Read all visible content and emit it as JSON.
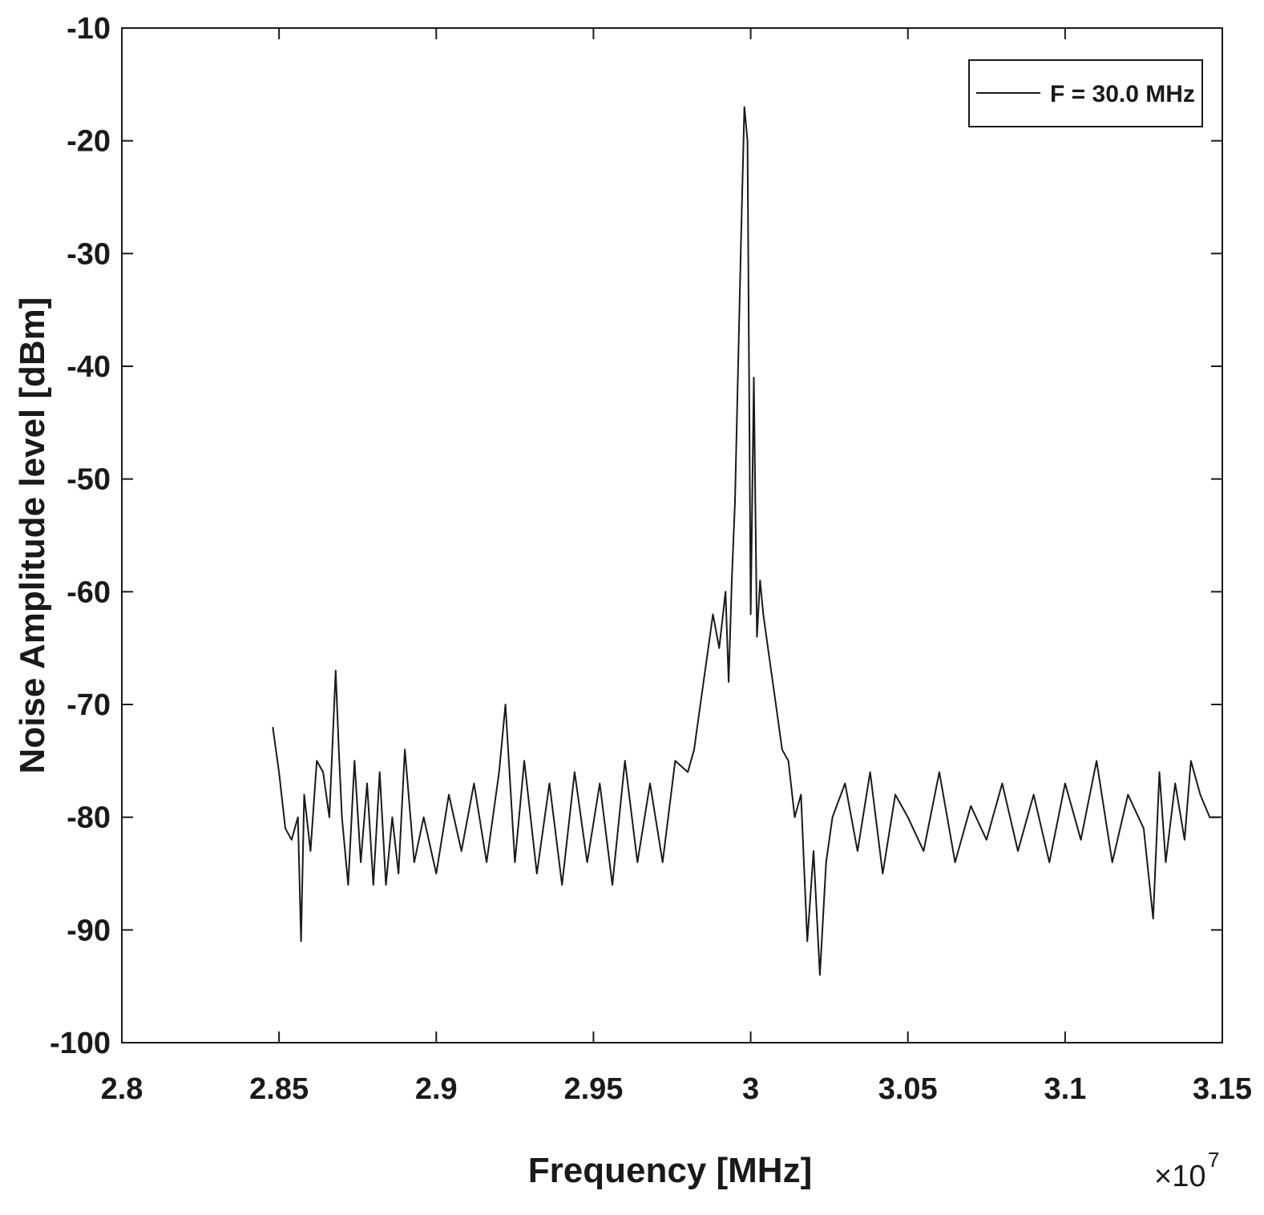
{
  "chart_data": {
    "type": "line",
    "title": "",
    "xlabel": "Frequency [MHz]",
    "ylabel": "Noise Amplitude level [dBm]",
    "x_exponent_label": "×10",
    "x_exponent_power": "7",
    "xlim": [
      2.8,
      3.15
    ],
    "ylim": [
      -100,
      -10
    ],
    "xticks": [
      2.8,
      2.85,
      2.9,
      2.95,
      3.0,
      3.05,
      3.1,
      3.15
    ],
    "xtick_labels": [
      "2.8",
      "2.85",
      "2.9",
      "2.95",
      "3",
      "3.05",
      "3.1",
      "3.15"
    ],
    "yticks": [
      -100,
      -90,
      -80,
      -70,
      -60,
      -50,
      -40,
      -30,
      -20,
      -10
    ],
    "ytick_labels": [
      "-100",
      "-90",
      "-80",
      "-70",
      "-60",
      "-50",
      "-40",
      "-30",
      "-20",
      "-10"
    ],
    "grid": false,
    "legend_position": "top-right",
    "series": [
      {
        "name": "F = 30.0 MHz",
        "color": "#1a1a1a",
        "x": [
          2.848,
          2.85,
          2.852,
          2.854,
          2.856,
          2.857,
          2.858,
          2.86,
          2.862,
          2.864,
          2.866,
          2.868,
          2.869,
          2.87,
          2.872,
          2.874,
          2.876,
          2.878,
          2.88,
          2.882,
          2.884,
          2.886,
          2.888,
          2.89,
          2.893,
          2.896,
          2.9,
          2.904,
          2.908,
          2.912,
          2.916,
          2.92,
          2.922,
          2.925,
          2.928,
          2.932,
          2.936,
          2.94,
          2.944,
          2.948,
          2.952,
          2.956,
          2.96,
          2.964,
          2.968,
          2.972,
          2.976,
          2.98,
          2.982,
          2.984,
          2.986,
          2.988,
          2.99,
          2.992,
          2.993,
          2.994,
          2.995,
          2.996,
          2.997,
          2.998,
          2.999,
          3.0,
          3.001,
          3.002,
          3.003,
          3.004,
          3.006,
          3.008,
          3.01,
          3.012,
          3.014,
          3.016,
          3.018,
          3.02,
          3.022,
          3.024,
          3.026,
          3.03,
          3.034,
          3.038,
          3.042,
          3.046,
          3.05,
          3.055,
          3.06,
          3.065,
          3.07,
          3.075,
          3.08,
          3.085,
          3.09,
          3.095,
          3.1,
          3.105,
          3.11,
          3.115,
          3.12,
          3.125,
          3.128,
          3.13,
          3.132,
          3.135,
          3.138,
          3.14,
          3.143,
          3.146,
          3.149
        ],
        "y": [
          -72,
          -76,
          -81,
          -82,
          -80,
          -91,
          -78,
          -83,
          -75,
          -76,
          -80,
          -67,
          -74,
          -80,
          -86,
          -75,
          -84,
          -77,
          -86,
          -76,
          -86,
          -80,
          -85,
          -74,
          -84,
          -80,
          -85,
          -78,
          -83,
          -77,
          -84,
          -76,
          -70,
          -84,
          -75,
          -85,
          -77,
          -86,
          -76,
          -84,
          -77,
          -86,
          -75,
          -84,
          -77,
          -84,
          -75,
          -76,
          -74,
          -70,
          -66,
          -62,
          -65,
          -60,
          -68,
          -59,
          -52,
          -40,
          -28,
          -17,
          -20,
          -62,
          -41,
          -64,
          -59,
          -62,
          -66,
          -70,
          -74,
          -75,
          -80,
          -78,
          -91,
          -83,
          -94,
          -84,
          -80,
          -77,
          -83,
          -76,
          -85,
          -78,
          -80,
          -83,
          -76,
          -84,
          -79,
          -82,
          -77,
          -83,
          -78,
          -84,
          -77,
          -82,
          -75,
          -84,
          -78,
          -81,
          -89,
          -76,
          -84,
          -77,
          -82,
          -75,
          -78,
          -80,
          -80
        ]
      }
    ]
  }
}
